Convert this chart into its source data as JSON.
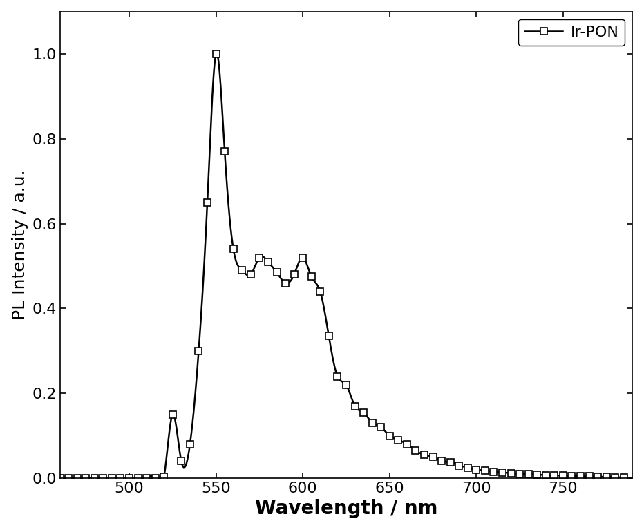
{
  "x_markers": [
    460,
    465,
    470,
    475,
    480,
    485,
    490,
    495,
    500,
    505,
    510,
    515,
    520,
    525,
    530,
    535,
    540,
    545,
    550,
    555,
    560,
    565,
    570,
    575,
    580,
    585,
    590,
    595,
    600,
    605,
    610,
    615,
    620,
    625,
    630,
    635,
    640,
    645,
    650,
    655,
    660,
    665,
    670,
    675,
    680,
    685,
    690,
    695,
    700,
    705,
    710,
    715,
    720,
    725,
    730,
    735,
    740,
    745,
    750,
    755,
    760,
    765,
    770,
    775,
    780,
    785
  ],
  "y_markers": [
    0.0,
    0.0,
    0.0,
    0.0,
    0.0,
    0.0,
    0.0,
    0.0,
    0.0,
    0.0,
    0.0,
    0.0,
    0.003,
    0.15,
    0.04,
    0.08,
    0.3,
    0.65,
    1.0,
    0.77,
    0.54,
    0.49,
    0.48,
    0.52,
    0.51,
    0.485,
    0.46,
    0.48,
    0.52,
    0.475,
    0.44,
    0.335,
    0.24,
    0.22,
    0.17,
    0.155,
    0.13,
    0.12,
    0.1,
    0.09,
    0.08,
    0.065,
    0.055,
    0.05,
    0.04,
    0.038,
    0.03,
    0.025,
    0.02,
    0.018,
    0.015,
    0.013,
    0.012,
    0.01,
    0.009,
    0.008,
    0.007,
    0.006,
    0.006,
    0.005,
    0.004,
    0.004,
    0.003,
    0.003,
    0.002,
    0.002
  ],
  "xlabel": "Wavelength / nm",
  "ylabel": "PL Intensity / a.u.",
  "legend_label": "Ir-PON",
  "line_color": "#000000",
  "marker_color": "#ffffff",
  "marker_edge_color": "#000000",
  "xlim": [
    460,
    790
  ],
  "ylim": [
    0.0,
    1.1
  ],
  "xticks": [
    500,
    550,
    600,
    650,
    700,
    750
  ],
  "yticks": [
    0.0,
    0.2,
    0.4,
    0.6,
    0.8,
    1.0
  ],
  "xlabel_fontsize": 20,
  "ylabel_fontsize": 18,
  "tick_fontsize": 16,
  "legend_fontsize": 16,
  "line_width": 1.8,
  "marker_size": 7,
  "marker_edge_width": 1.2
}
